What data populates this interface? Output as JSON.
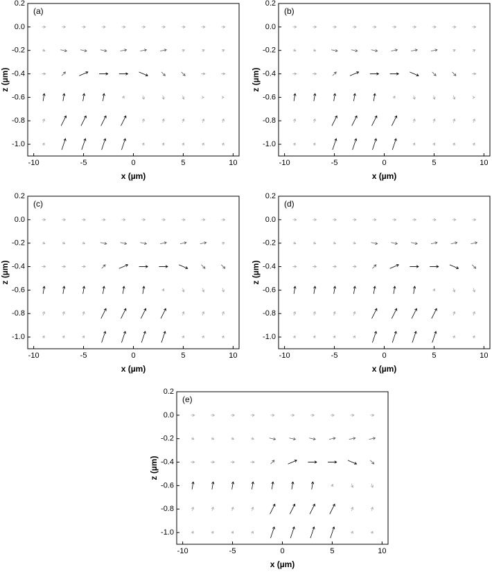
{
  "chart_data": [
    {
      "type": "quiver",
      "label": "(a)",
      "xlabel": "x (µm)",
      "ylabel": "z (µm)",
      "xlim": [
        -10.6,
        10.6
      ],
      "ylim": [
        -1.1,
        0.2
      ],
      "xticks": [
        -10,
        -5,
        0,
        5,
        10
      ],
      "yticks": [
        0.2,
        {
          "value": 0,
          "label": "0.0"
        },
        -0.2,
        -0.4,
        -0.6,
        -0.8,
        {
          "value": -1,
          "label": "-1.0"
        }
      ],
      "x": [
        -9,
        -7,
        -5,
        -3,
        -1,
        1,
        3,
        5,
        7,
        9
      ],
      "z": [
        0,
        -0.2,
        -0.4,
        -0.6,
        -0.8,
        -1
      ],
      "u": [
        [
          0.3,
          0.3,
          0.3,
          0.3,
          0.3,
          0.3,
          0.3,
          0.3,
          0.3,
          0.3
        ],
        [
          0.2,
          0.5,
          0.5,
          0.5,
          0.5,
          0.5,
          0.5,
          0.2,
          0.2,
          0.2
        ],
        [
          0.3,
          0.3,
          0.7,
          0.7,
          0.7,
          0.7,
          0.3,
          0.3,
          0.3,
          0.3
        ],
        [
          0.1,
          0.1,
          0.1,
          0.1,
          0.1,
          0.1,
          0.1,
          0.1,
          0.1,
          0.1
        ],
        [
          0.1,
          0.4,
          0.4,
          0.4,
          0.4,
          0.1,
          0.1,
          0.1,
          0.1,
          0.1
        ],
        [
          0.1,
          0.3,
          0.3,
          0.3,
          0.3,
          0.1,
          0.1,
          0.1,
          0.1,
          0.1
        ]
      ],
      "w": [
        [
          0,
          0,
          0,
          0,
          0,
          0,
          0,
          0,
          0,
          0
        ],
        [
          -0.1,
          -0.1,
          -0.1,
          -0.1,
          0.1,
          0.1,
          0.1,
          0.1,
          0.1,
          0.1
        ],
        [
          0,
          0.3,
          0.3,
          0,
          0,
          -0.3,
          -0.3,
          -0.3,
          0,
          0
        ],
        [
          0.6,
          0.6,
          0.6,
          0.6,
          0.2,
          -0.3,
          -0.3,
          -0.3,
          0,
          0
        ],
        [
          0.3,
          0.8,
          0.8,
          0.8,
          0.8,
          0.3,
          0.3,
          0.3,
          0.3,
          0.3
        ],
        [
          0.2,
          0.9,
          0.9,
          0.9,
          0.9,
          0.2,
          0.2,
          0.2,
          0.2,
          0.2
        ]
      ]
    },
    {
      "type": "quiver",
      "label": "(b)",
      "xlabel": "x (µm)",
      "ylabel": "z (µm)",
      "xlim": [
        -10.6,
        10.6
      ],
      "ylim": [
        -1.1,
        0.2
      ],
      "xticks": [
        -10,
        -5,
        0,
        5,
        10
      ],
      "yticks": [
        0.2,
        {
          "value": 0,
          "label": "0.0"
        },
        -0.2,
        -0.4,
        -0.6,
        -0.8,
        {
          "value": -1,
          "label": "-1.0"
        }
      ],
      "x": [
        -9,
        -7,
        -5,
        -3,
        -1,
        1,
        3,
        5,
        7,
        9
      ],
      "z": [
        0,
        -0.2,
        -0.4,
        -0.6,
        -0.8,
        -1
      ],
      "u": [
        [
          0.3,
          0.3,
          0.3,
          0.3,
          0.3,
          0.3,
          0.3,
          0.3,
          0.3,
          0.3
        ],
        [
          0.2,
          0.2,
          0.5,
          0.5,
          0.5,
          0.5,
          0.5,
          0.5,
          0.2,
          0.2
        ],
        [
          0.3,
          0.3,
          0.3,
          0.7,
          0.7,
          0.7,
          0.7,
          0.3,
          0.3,
          0.3
        ],
        [
          0.1,
          0.1,
          0.1,
          0.1,
          0.1,
          0.1,
          0.1,
          0.1,
          0.1,
          0.1
        ],
        [
          0.1,
          0.1,
          0.4,
          0.4,
          0.4,
          0.4,
          0.1,
          0.1,
          0.1,
          0.1
        ],
        [
          0.1,
          0.1,
          0.3,
          0.3,
          0.3,
          0.3,
          0.1,
          0.1,
          0.1,
          0.1
        ]
      ],
      "w": [
        [
          0,
          0,
          0,
          0,
          0,
          0,
          0,
          0,
          0,
          0
        ],
        [
          -0.1,
          -0.1,
          -0.1,
          -0.1,
          -0.1,
          0.1,
          0.1,
          0.1,
          0.1,
          0.1
        ],
        [
          0,
          0,
          0.3,
          0.3,
          0,
          0,
          -0.3,
          -0.3,
          -0.3,
          0
        ],
        [
          0.6,
          0.6,
          0.6,
          0.6,
          0.6,
          0.2,
          -0.3,
          -0.3,
          -0.3,
          0
        ],
        [
          0.3,
          0.3,
          0.8,
          0.8,
          0.8,
          0.8,
          0.3,
          0.3,
          0.3,
          0.3
        ],
        [
          0.2,
          0.2,
          0.9,
          0.9,
          0.9,
          0.9,
          0.2,
          0.2,
          0.2,
          0.2
        ]
      ]
    },
    {
      "type": "quiver",
      "label": "(c)",
      "xlabel": "x (µm)",
      "ylabel": "z (µm)",
      "xlim": [
        -10.6,
        10.6
      ],
      "ylim": [
        -1.1,
        0.2
      ],
      "xticks": [
        -10,
        -5,
        0,
        5,
        10
      ],
      "yticks": [
        0.2,
        {
          "value": 0,
          "label": "0.0"
        },
        -0.2,
        -0.4,
        -0.6,
        -0.8,
        {
          "value": -1,
          "label": "-1.0"
        }
      ],
      "x": [
        -9,
        -7,
        -5,
        -3,
        -1,
        1,
        3,
        5,
        7,
        9
      ],
      "z": [
        0,
        -0.2,
        -0.4,
        -0.6,
        -0.8,
        -1
      ],
      "u": [
        [
          0.3,
          0.3,
          0.3,
          0.3,
          0.3,
          0.3,
          0.3,
          0.3,
          0.3,
          0.3
        ],
        [
          0.2,
          0.2,
          0.2,
          0.5,
          0.5,
          0.5,
          0.5,
          0.5,
          0.5,
          0.2
        ],
        [
          0.3,
          0.3,
          0.3,
          0.3,
          0.7,
          0.7,
          0.7,
          0.7,
          0.3,
          0.3
        ],
        [
          0.1,
          0.1,
          0.1,
          0.1,
          0.1,
          0.1,
          0.1,
          0.1,
          0.1,
          0.1
        ],
        [
          0.1,
          0.1,
          0.1,
          0.4,
          0.4,
          0.4,
          0.4,
          0.1,
          0.1,
          0.1
        ],
        [
          0.1,
          0.1,
          0.1,
          0.3,
          0.3,
          0.3,
          0.3,
          0.1,
          0.1,
          0.1
        ]
      ],
      "w": [
        [
          0,
          0,
          0,
          0,
          0,
          0,
          0,
          0,
          0,
          0
        ],
        [
          -0.1,
          -0.1,
          -0.1,
          -0.1,
          -0.1,
          -0.1,
          0.1,
          0.1,
          0.1,
          0.1
        ],
        [
          0,
          0,
          0,
          0.3,
          0.3,
          0,
          0,
          -0.3,
          -0.3,
          -0.3
        ],
        [
          0.6,
          0.6,
          0.6,
          0.6,
          0.6,
          0.6,
          0.2,
          -0.3,
          -0.3,
          -0.3
        ],
        [
          0.3,
          0.3,
          0.3,
          0.8,
          0.8,
          0.8,
          0.8,
          0.3,
          0.3,
          0.3
        ],
        [
          0.2,
          0.2,
          0.2,
          0.9,
          0.9,
          0.9,
          0.9,
          0.2,
          0.2,
          0.2
        ]
      ]
    },
    {
      "type": "quiver",
      "label": "(d)",
      "xlabel": "x (µm)",
      "ylabel": "z (µm)",
      "xlim": [
        -10.6,
        10.6
      ],
      "ylim": [
        -1.1,
        0.2
      ],
      "xticks": [
        -10,
        -5,
        0,
        5,
        10
      ],
      "yticks": [
        0.2,
        {
          "value": 0,
          "label": "0.0"
        },
        -0.2,
        -0.4,
        -0.6,
        -0.8,
        {
          "value": -1,
          "label": "-1.0"
        }
      ],
      "x": [
        -9,
        -7,
        -5,
        -3,
        -1,
        1,
        3,
        5,
        7,
        9
      ],
      "z": [
        0,
        -0.2,
        -0.4,
        -0.6,
        -0.8,
        -1
      ],
      "u": [
        [
          0.3,
          0.3,
          0.3,
          0.3,
          0.3,
          0.3,
          0.3,
          0.3,
          0.3,
          0.3
        ],
        [
          0.2,
          0.2,
          0.2,
          0.2,
          0.5,
          0.5,
          0.5,
          0.5,
          0.5,
          0.5
        ],
        [
          0.3,
          0.3,
          0.3,
          0.3,
          0.3,
          0.7,
          0.7,
          0.7,
          0.7,
          0.3
        ],
        [
          0.1,
          0.1,
          0.1,
          0.1,
          0.1,
          0.1,
          0.1,
          0.1,
          0.1,
          0.1
        ],
        [
          0.1,
          0.1,
          0.1,
          0.1,
          0.4,
          0.4,
          0.4,
          0.4,
          0.1,
          0.1
        ],
        [
          0.1,
          0.1,
          0.1,
          0.1,
          0.3,
          0.3,
          0.3,
          0.3,
          0.1,
          0.1
        ]
      ],
      "w": [
        [
          0,
          0,
          0,
          0,
          0,
          0,
          0,
          0,
          0,
          0
        ],
        [
          -0.1,
          -0.1,
          -0.1,
          -0.1,
          -0.1,
          -0.1,
          -0.1,
          0.1,
          0.1,
          0.1
        ],
        [
          0,
          0,
          0,
          0,
          0.3,
          0.3,
          0,
          0,
          -0.3,
          -0.3
        ],
        [
          0.6,
          0.6,
          0.6,
          0.6,
          0.6,
          0.6,
          0.6,
          0.2,
          -0.3,
          -0.3
        ],
        [
          0.3,
          0.3,
          0.3,
          0.3,
          0.8,
          0.8,
          0.8,
          0.8,
          0.3,
          0.3
        ],
        [
          0.2,
          0.2,
          0.2,
          0.2,
          0.9,
          0.9,
          0.9,
          0.9,
          0.2,
          0.2
        ]
      ]
    },
    {
      "type": "quiver",
      "label": "(e)",
      "xlabel": "x (µm)",
      "ylabel": "z (µm)",
      "xlim": [
        -10.6,
        10.6
      ],
      "ylim": [
        -1.1,
        0.2
      ],
      "xticks": [
        -10,
        -5,
        0,
        5,
        10
      ],
      "yticks": [
        0.2,
        {
          "value": 0,
          "label": "0.0"
        },
        -0.2,
        -0.4,
        -0.6,
        -0.8,
        {
          "value": -1,
          "label": "-1.0"
        }
      ],
      "x": [
        -9,
        -7,
        -5,
        -3,
        -1,
        1,
        3,
        5,
        7,
        9
      ],
      "z": [
        0,
        -0.2,
        -0.4,
        -0.6,
        -0.8,
        -1
      ],
      "u": [
        [
          0.3,
          0.3,
          0.3,
          0.3,
          0.3,
          0.3,
          0.3,
          0.3,
          0.3,
          0.3
        ],
        [
          0.2,
          0.2,
          0.2,
          0.2,
          0.5,
          0.5,
          0.5,
          0.5,
          0.5,
          0.5
        ],
        [
          0.3,
          0.3,
          0.3,
          0.3,
          0.3,
          0.7,
          0.7,
          0.7,
          0.7,
          0.3
        ],
        [
          0.1,
          0.1,
          0.1,
          0.1,
          0.1,
          0.1,
          0.1,
          0.1,
          0.1,
          0.1
        ],
        [
          0.1,
          0.1,
          0.1,
          0.1,
          0.4,
          0.4,
          0.4,
          0.4,
          0.1,
          0.1
        ],
        [
          0.1,
          0.1,
          0.1,
          0.1,
          0.3,
          0.3,
          0.3,
          0.3,
          0.1,
          0.1
        ]
      ],
      "w": [
        [
          0,
          0,
          0,
          0,
          0,
          0,
          0,
          0,
          0,
          0
        ],
        [
          -0.1,
          -0.1,
          -0.1,
          -0.1,
          -0.1,
          -0.1,
          -0.1,
          0.1,
          0.1,
          0.1
        ],
        [
          0,
          0,
          0,
          0,
          0.3,
          0.3,
          0,
          0,
          -0.3,
          -0.3
        ],
        [
          0.6,
          0.6,
          0.6,
          0.6,
          0.6,
          0.6,
          0.6,
          0.2,
          -0.3,
          -0.3
        ],
        [
          0.3,
          0.3,
          0.3,
          0.3,
          0.8,
          0.8,
          0.8,
          0.8,
          0.3,
          0.3
        ],
        [
          0.2,
          0.2,
          0.2,
          0.2,
          0.9,
          0.9,
          0.9,
          0.9,
          0.2,
          0.2
        ]
      ]
    }
  ]
}
